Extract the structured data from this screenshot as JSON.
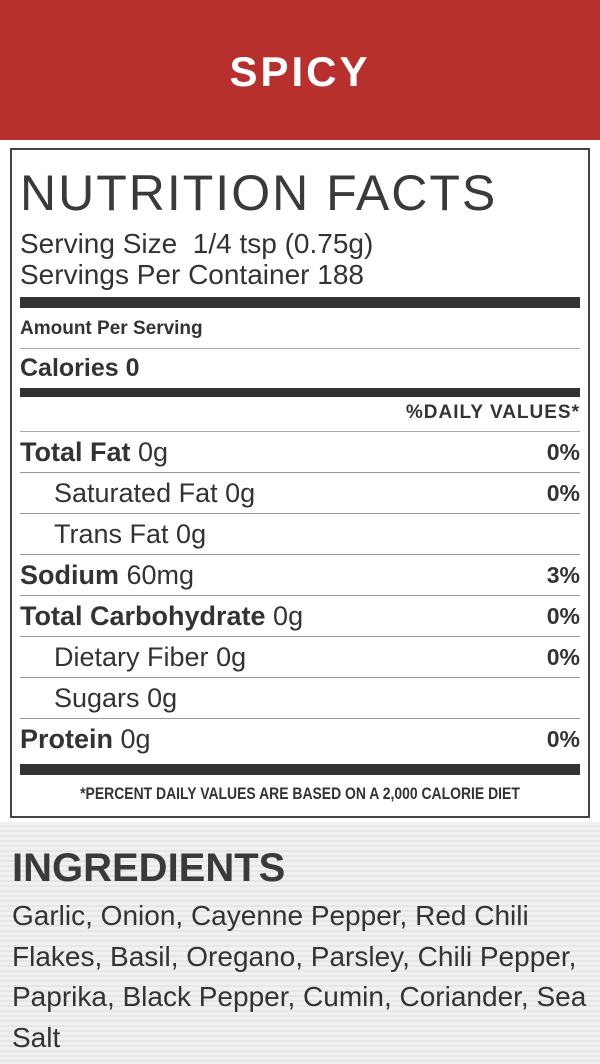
{
  "header": {
    "title": "SPICY"
  },
  "nutrition": {
    "title": "NUTRITION FACTS",
    "serving_size": "Serving Size  1/4 tsp (0.75g)",
    "servings_per_container": "Servings Per Container 188",
    "amount_per_serving": "Amount Per Serving",
    "calories": "Calories 0",
    "daily_values_header": "%DAILY VALUES*",
    "rows": [
      {
        "name": "Total Fat",
        "amount": "0g",
        "dv": "0%"
      },
      {
        "name": "Saturated Fat",
        "amount": "0g",
        "dv": "0%"
      },
      {
        "name": "Trans Fat",
        "amount": "0g"
      },
      {
        "name": "Sodium",
        "amount": "60mg",
        "dv": "3%"
      },
      {
        "name": "Total Carbohydrate",
        "amount": "0g",
        "dv": "0%"
      },
      {
        "name": "Dietary Fiber",
        "amount": "0g",
        "dv": "0%"
      },
      {
        "name": "Sugars",
        "amount": "0g"
      },
      {
        "name": "Protein",
        "amount": "0g",
        "dv": "0%"
      }
    ],
    "footnote": "*PERCENT DAILY VALUES ARE BASED ON A 2,000 CALORIE DIET"
  },
  "ingredients": {
    "title": "INGREDIENTS",
    "text": "Garlic, Onion, Cayenne Pepper, Red Chili Flakes, Basil, Oregano, Parsley, Chili Pepper, Paprika, Black Pepper, Cumin, Coriander, Sea Salt"
  }
}
